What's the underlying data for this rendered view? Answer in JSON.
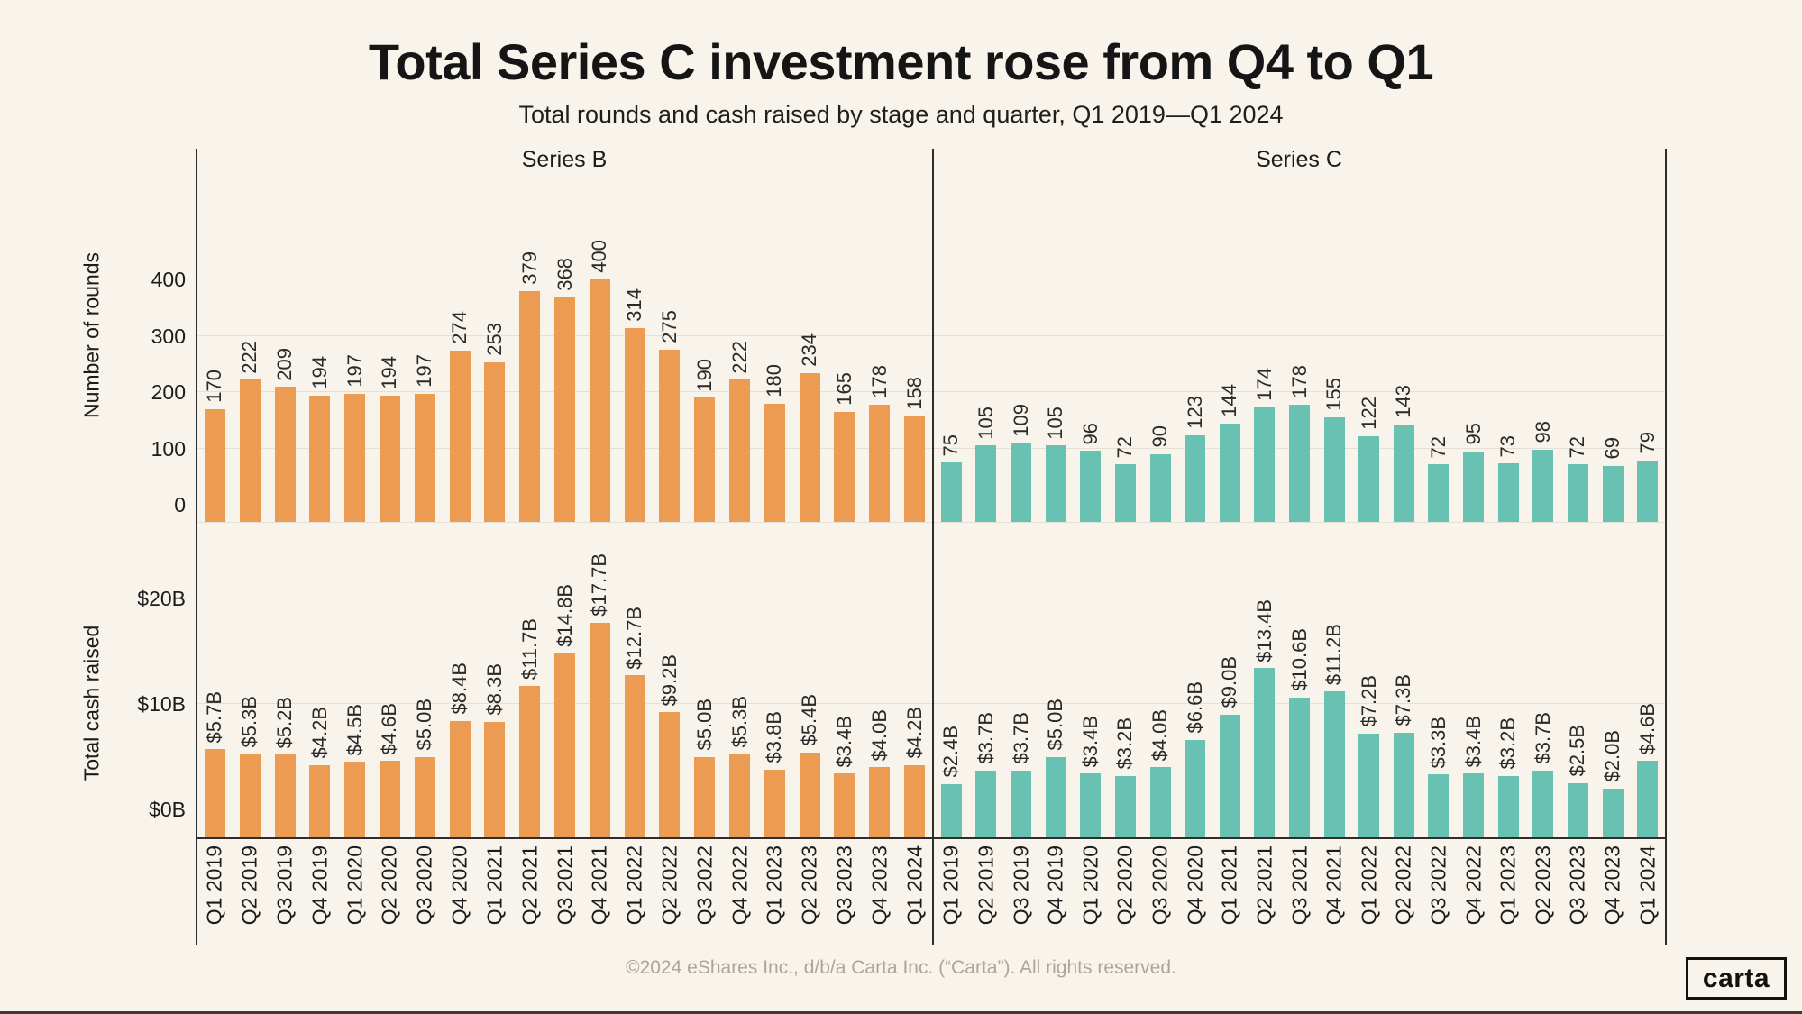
{
  "chart_data": {
    "type": "bar",
    "title": "Total Series C investment rose from Q4 to Q1",
    "subtitle": "Total rounds and cash raised by stage and quarter, Q1 2019—Q1 2024",
    "grid": true,
    "legend_position": "panel-top",
    "categories": [
      "Q1 2019",
      "Q2 2019",
      "Q3 2019",
      "Q4 2019",
      "Q1 2020",
      "Q2 2020",
      "Q3 2020",
      "Q4 2020",
      "Q1 2021",
      "Q2 2021",
      "Q3 2021",
      "Q4 2021",
      "Q1 2022",
      "Q2 2022",
      "Q3 2022",
      "Q4 2022",
      "Q1 2023",
      "Q2 2023",
      "Q3 2023",
      "Q4 2023",
      "Q1 2024"
    ],
    "panel_rows": [
      {
        "id": "rounds",
        "ylabel": "Number of rounds",
        "tick_labels": [
          "0",
          "100",
          "200",
          "300",
          "400"
        ],
        "tick_values": [
          0,
          100,
          200,
          300,
          400
        ],
        "ylim": [
          0,
          480
        ]
      },
      {
        "id": "cash",
        "ylabel": "Total cash raised",
        "tick_labels": [
          "$0B",
          "$10B",
          "$20B"
        ],
        "tick_values": [
          0,
          10,
          20
        ],
        "ylim": [
          0,
          23
        ]
      }
    ],
    "series": [
      {
        "name": "Series B",
        "color": "#EC9B52",
        "rounds": [
          170,
          222,
          209,
          194,
          197,
          194,
          197,
          274,
          253,
          379,
          368,
          400,
          314,
          275,
          190,
          222,
          180,
          234,
          165,
          178,
          158
        ],
        "cash": [
          5.7,
          5.3,
          5.2,
          4.2,
          4.5,
          4.6,
          5.0,
          8.4,
          8.3,
          11.7,
          14.8,
          17.7,
          12.7,
          9.2,
          5.0,
          5.3,
          3.8,
          5.4,
          3.4,
          4.0,
          4.2
        ],
        "cash_labels": [
          "$5.7B",
          "$5.3B",
          "$5.2B",
          "$4.2B",
          "$4.5B",
          "$4.6B",
          "$5.0B",
          "$8.4B",
          "$8.3B",
          "$11.7B",
          "$14.8B",
          "$17.7B",
          "$12.7B",
          "$9.2B",
          "$5.0B",
          "$5.3B",
          "$3.8B",
          "$5.4B",
          "$3.4B",
          "$4.0B",
          "$4.2B"
        ]
      },
      {
        "name": "Series C",
        "color": "#68C1B1",
        "rounds": [
          75,
          105,
          109,
          105,
          96,
          72,
          90,
          123,
          144,
          174,
          178,
          155,
          122,
          143,
          72,
          95,
          73,
          98,
          72,
          69,
          79
        ],
        "cash": [
          2.4,
          3.7,
          3.7,
          5.0,
          3.4,
          3.2,
          4.0,
          6.6,
          9.0,
          13.4,
          10.6,
          11.2,
          7.2,
          7.3,
          3.3,
          3.4,
          3.2,
          3.7,
          2.5,
          2.0,
          4.6
        ],
        "cash_labels": [
          "$2.4B",
          "$3.7B",
          "$3.7B",
          "$5.0B",
          "$3.4B",
          "$3.2B",
          "$4.0B",
          "$6.6B",
          "$9.0B",
          "$13.4B",
          "$10.6B",
          "$11.2B",
          "$7.2B",
          "$7.3B",
          "$3.3B",
          "$3.4B",
          "$3.2B",
          "$3.7B",
          "$2.5B",
          "$2.0B",
          "$4.6B"
        ]
      }
    ]
  },
  "colors": {
    "background": "#F9F4EB",
    "grid": "#E5E0D5",
    "axis": "#2E2D2B",
    "series_b": "#EC9B52",
    "series_c": "#68C1B1",
    "footer_text": "#ABA59B"
  },
  "footer": {
    "copyright": "©2024 eShares Inc., d/b/a Carta Inc. (“Carta”). All rights reserved.",
    "logo_text": "carta"
  }
}
